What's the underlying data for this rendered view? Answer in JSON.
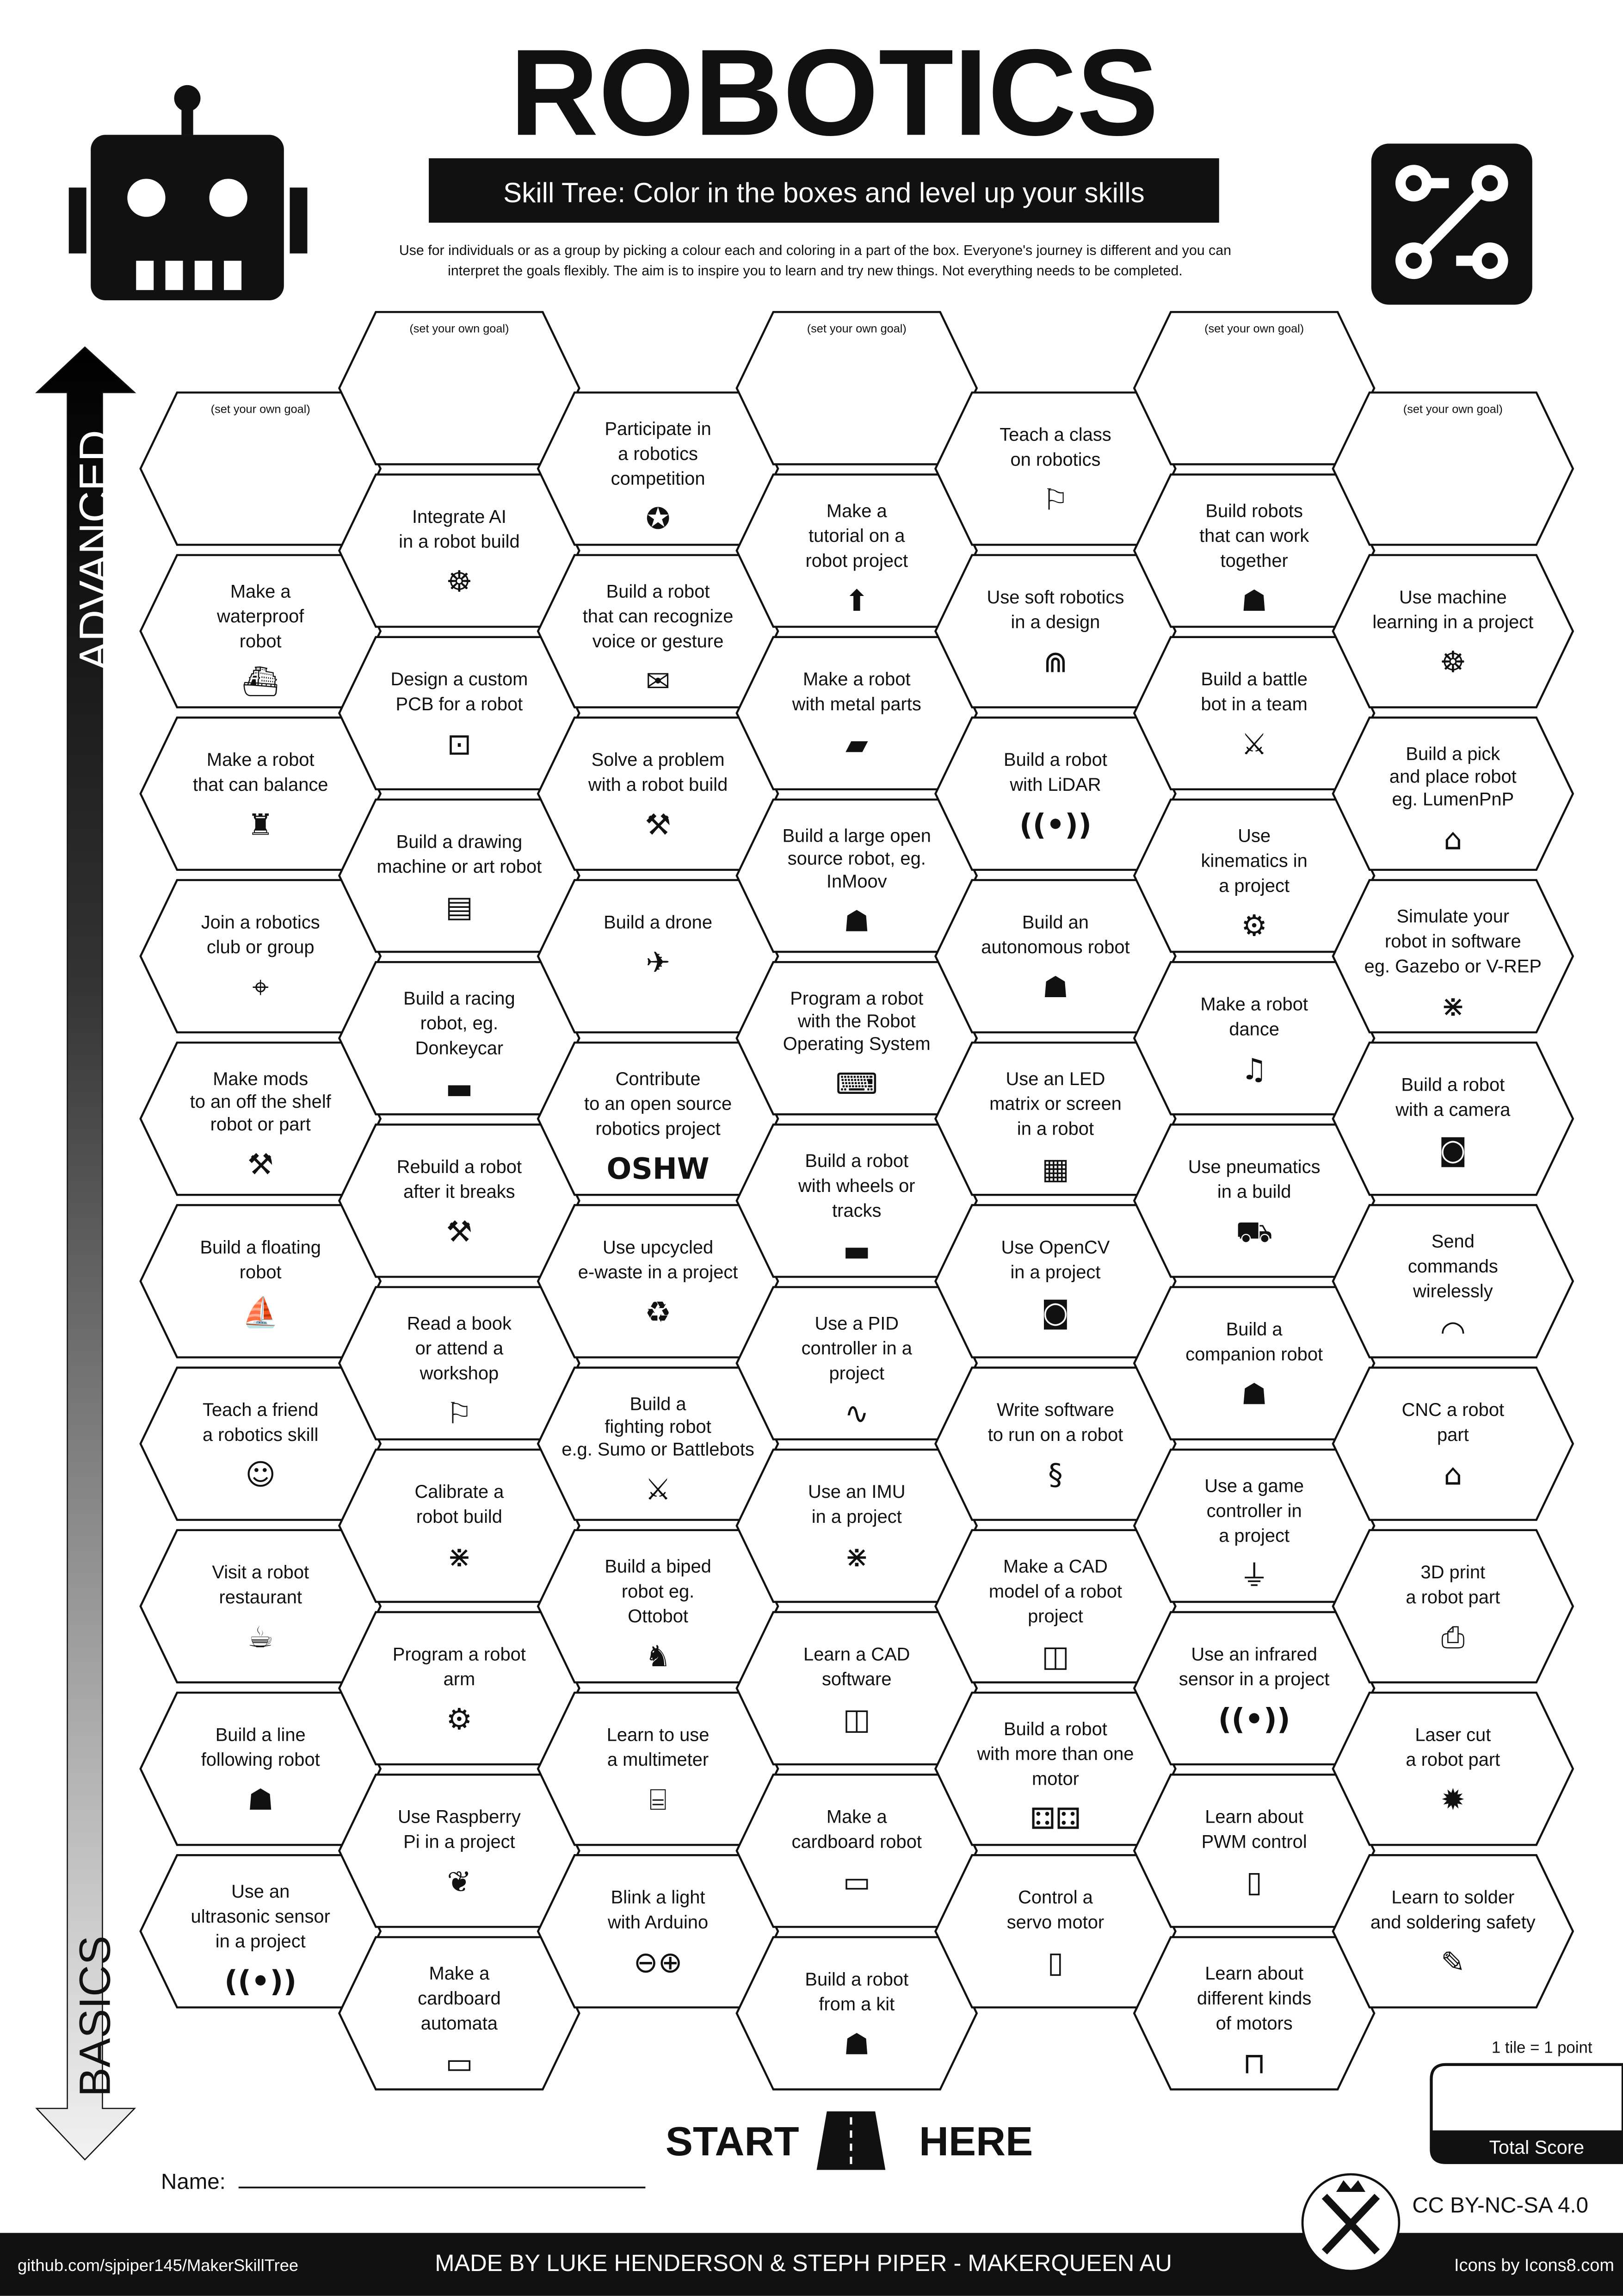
{
  "header": {
    "title": "ROBOTICS",
    "subtitle": "Skill Tree:  Color in the boxes and level up your skills",
    "description": [
      "Use for individuals or as a group by picking a colour each and coloring in a part of the box.  Everyone's journey is different and you can",
      "interpret the goals flexibly.  The aim is to inspire you to learn and try new things. Not everything needs to be completed."
    ],
    "left_icon": "robot-head-icon",
    "right_icon": "circuit-logo-icon"
  },
  "axis": {
    "top_label": "ADVANCED",
    "bottom_label": "BASICS"
  },
  "goal_label": "(set your own goal)",
  "columns": [
    [
      {
        "goal": true
      },
      {
        "lines": [
          "Make a",
          "waterproof",
          "robot"
        ],
        "icon": "submarine"
      },
      {
        "lines": [
          "Make a robot",
          "that can balance"
        ],
        "icon": "robot-balance"
      },
      {
        "lines": [
          "Join a robotics",
          "club or group"
        ],
        "icon": "map-pin"
      },
      {
        "lines": [
          "Make mods",
          "to an off the shelf",
          "robot or part"
        ],
        "icon": "tools",
        "small": true
      },
      {
        "lines": [
          "Build a floating",
          "robot"
        ],
        "icon": "sailboat"
      },
      {
        "lines": [
          "Teach a friend",
          "a robotics skill"
        ],
        "icon": "people-laptop"
      },
      {
        "lines": [
          "Visit a robot",
          "restaurant"
        ],
        "icon": "restaurant"
      },
      {
        "lines": [
          "Build a line",
          "following robot"
        ],
        "icon": "robot"
      },
      {
        "lines": [
          "Use an",
          "ultrasonic sensor",
          "in a project"
        ],
        "icon": "signal"
      }
    ],
    [
      {
        "goal": true
      },
      {
        "lines": [
          "Integrate AI",
          "in a robot build"
        ],
        "icon": "brain-circuit"
      },
      {
        "lines": [
          "Design a custom",
          "PCB for a robot"
        ],
        "icon": "circuit"
      },
      {
        "lines": [
          "Build a drawing",
          "machine or art robot"
        ],
        "icon": "easel"
      },
      {
        "lines": [
          "Build a racing",
          "robot, eg.",
          "Donkeycar"
        ],
        "icon": "car"
      },
      {
        "lines": [
          "Rebuild a robot",
          "after it breaks"
        ],
        "icon": "tools"
      },
      {
        "lines": [
          "Read a book",
          "or attend a",
          "workshop"
        ],
        "icon": "teacher"
      },
      {
        "lines": [
          "Calibrate a",
          "robot build"
        ],
        "icon": "calibrate"
      },
      {
        "lines": [
          "Program a robot",
          "arm"
        ],
        "icon": "robot-arm"
      },
      {
        "lines": [
          "Use Raspberry",
          "Pi in a project"
        ],
        "icon": "raspberry-pi"
      },
      {
        "lines": [
          "Make a",
          "cardboard",
          "automata"
        ],
        "icon": "conveyor"
      }
    ],
    [
      {
        "lines": [
          "Participate in",
          "a robotics",
          "competition"
        ],
        "icon": "medal"
      },
      {
        "lines": [
          "Build a robot",
          "that can recognize",
          "voice or gesture"
        ],
        "icon": "chat"
      },
      {
        "lines": [
          "Solve a problem",
          "with a robot build"
        ],
        "icon": "tools"
      },
      {
        "lines": [
          "Build a drone"
        ],
        "icon": "drone"
      },
      {
        "lines": [
          "Contribute",
          "to an open source",
          "robotics project"
        ],
        "icon": "oshw"
      },
      {
        "lines": [
          "Use upcycled",
          "e-waste in a project"
        ],
        "icon": "recycle"
      },
      {
        "lines": [
          "Build a",
          "fighting robot",
          "e.g. Sumo or Battlebots"
        ],
        "icon": "crossed-swords",
        "small": true
      },
      {
        "lines": [
          "Build a biped",
          "robot eg.",
          "Ottobot"
        ],
        "icon": "biped-robot"
      },
      {
        "lines": [
          "Learn to use",
          "a multimeter"
        ],
        "icon": "multimeter"
      },
      {
        "lines": [
          "Blink a light",
          "with Arduino"
        ],
        "icon": "arduino"
      }
    ],
    [
      {
        "goal": true
      },
      {
        "lines": [
          "Make a",
          "tutorial on a",
          "robot project"
        ],
        "icon": "arrow-up-circle"
      },
      {
        "lines": [
          "Make a robot",
          "with metal parts"
        ],
        "icon": "metal-sheet"
      },
      {
        "lines": [
          "Build a large open",
          "source robot, eg.",
          "InMoov"
        ],
        "icon": "robot",
        "small": true
      },
      {
        "lines": [
          "Program a robot",
          "with the Robot",
          "Operating System"
        ],
        "icon": "console",
        "small": true
      },
      {
        "lines": [
          "Build a robot",
          "with wheels or",
          "tracks"
        ],
        "icon": "car"
      },
      {
        "lines": [
          "Use a PID",
          "controller in a",
          "project"
        ],
        "icon": "pid-graph"
      },
      {
        "lines": [
          "Use an IMU",
          "in a project"
        ],
        "icon": "calibrate"
      },
      {
        "lines": [
          "Learn a CAD",
          "software"
        ],
        "icon": "cube"
      },
      {
        "lines": [
          "Make a",
          "cardboard robot"
        ],
        "icon": "conveyor"
      },
      {
        "lines": [
          "Build a robot",
          "from a kit"
        ],
        "icon": "robot"
      }
    ],
    [
      {
        "lines": [
          "Teach a class",
          "on robotics"
        ],
        "icon": "teacher"
      },
      {
        "lines": [
          "Use soft robotics",
          "in a design"
        ],
        "icon": "gripper"
      },
      {
        "lines": [
          "Build a robot",
          "with LiDAR"
        ],
        "icon": "signal"
      },
      {
        "lines": [
          "Build an",
          "autonomous robot"
        ],
        "icon": "robot"
      },
      {
        "lines": [
          "Use an LED",
          "matrix or screen",
          "in a robot"
        ],
        "icon": "led-matrix"
      },
      {
        "lines": [
          "Use OpenCV",
          "in a project"
        ],
        "icon": "camera"
      },
      {
        "lines": [
          "Write software",
          "to run on a robot"
        ],
        "icon": "python"
      },
      {
        "lines": [
          "Make a CAD",
          "model of a robot",
          "project"
        ],
        "icon": "cube"
      },
      {
        "lines": [
          "Build a robot",
          "with more than one",
          "motor"
        ],
        "icon": "motors"
      },
      {
        "lines": [
          "Control a",
          "servo motor"
        ],
        "icon": "servo"
      }
    ],
    [
      {
        "goal": true
      },
      {
        "lines": [
          "Build robots",
          "that can work",
          "together"
        ],
        "icon": "robot"
      },
      {
        "lines": [
          "Build a battle",
          "bot in a team"
        ],
        "icon": "crossed-swords"
      },
      {
        "lines": [
          "Use",
          "kinematics in",
          "a project"
        ],
        "icon": "robot-arm"
      },
      {
        "lines": [
          "Make a robot",
          "dance"
        ],
        "icon": "dance"
      },
      {
        "lines": [
          "Use pneumatics",
          "in a build"
        ],
        "icon": "van"
      },
      {
        "lines": [
          "Build a",
          "companion robot"
        ],
        "icon": "robot"
      },
      {
        "lines": [
          "Use a game",
          "controller in",
          "a project"
        ],
        "icon": "joystick"
      },
      {
        "lines": [
          "Use an infrared",
          "sensor in a project"
        ],
        "icon": "signal"
      },
      {
        "lines": [
          "Learn about",
          "PWM control"
        ],
        "icon": "servo"
      },
      {
        "lines": [
          "Learn about",
          "different kinds",
          "of motors"
        ],
        "icon": "motor"
      }
    ],
    [
      {
        "goal": true
      },
      {
        "lines": [
          "Use machine",
          "learning in a project"
        ],
        "icon": "brain-circuit"
      },
      {
        "lines": [
          "Build a pick",
          "and place robot",
          "eg. LumenPnP"
        ],
        "icon": "cnc-machine",
        "small": true
      },
      {
        "lines": [
          "Simulate your",
          "robot in software",
          "eg. Gazebo or V-REP"
        ],
        "icon": "calibrate"
      },
      {
        "lines": [
          "Build a robot",
          "with a camera"
        ],
        "icon": "camera"
      },
      {
        "lines": [
          "Send",
          "commands",
          "wirelessly"
        ],
        "icon": "wifi"
      },
      {
        "lines": [
          "CNC a robot",
          "part"
        ],
        "icon": "cnc-machine"
      },
      {
        "lines": [
          "3D print",
          "a robot part"
        ],
        "icon": "3d-printer"
      },
      {
        "lines": [
          "Laser cut",
          "a robot part"
        ],
        "icon": "laser-burst"
      },
      {
        "lines": [
          "Learn to solder",
          "and soldering safety"
        ],
        "icon": "soldering-iron"
      }
    ]
  ],
  "start": {
    "left": "START",
    "right": "HERE",
    "icon": "road-icon"
  },
  "name_label": "Name:",
  "score": {
    "note": "1 tile = 1 point",
    "label": "Total Score"
  },
  "license": "CC BY-NC-SA 4.0",
  "footer": {
    "repo": "github.com/sjpiper145/MakerSkillTree",
    "credits": "MADE BY LUKE HENDERSON & STEPH PIPER  -  MAKERQUEEN AU",
    "icons_credit": "Icons by Icons8.com",
    "logo_icon": "makerqueen-logo-icon"
  },
  "colors": {
    "ink": "#111111",
    "paper": "#ffffff",
    "arrow_top": "#000000",
    "arrow_bottom": "#f2f2f2"
  }
}
